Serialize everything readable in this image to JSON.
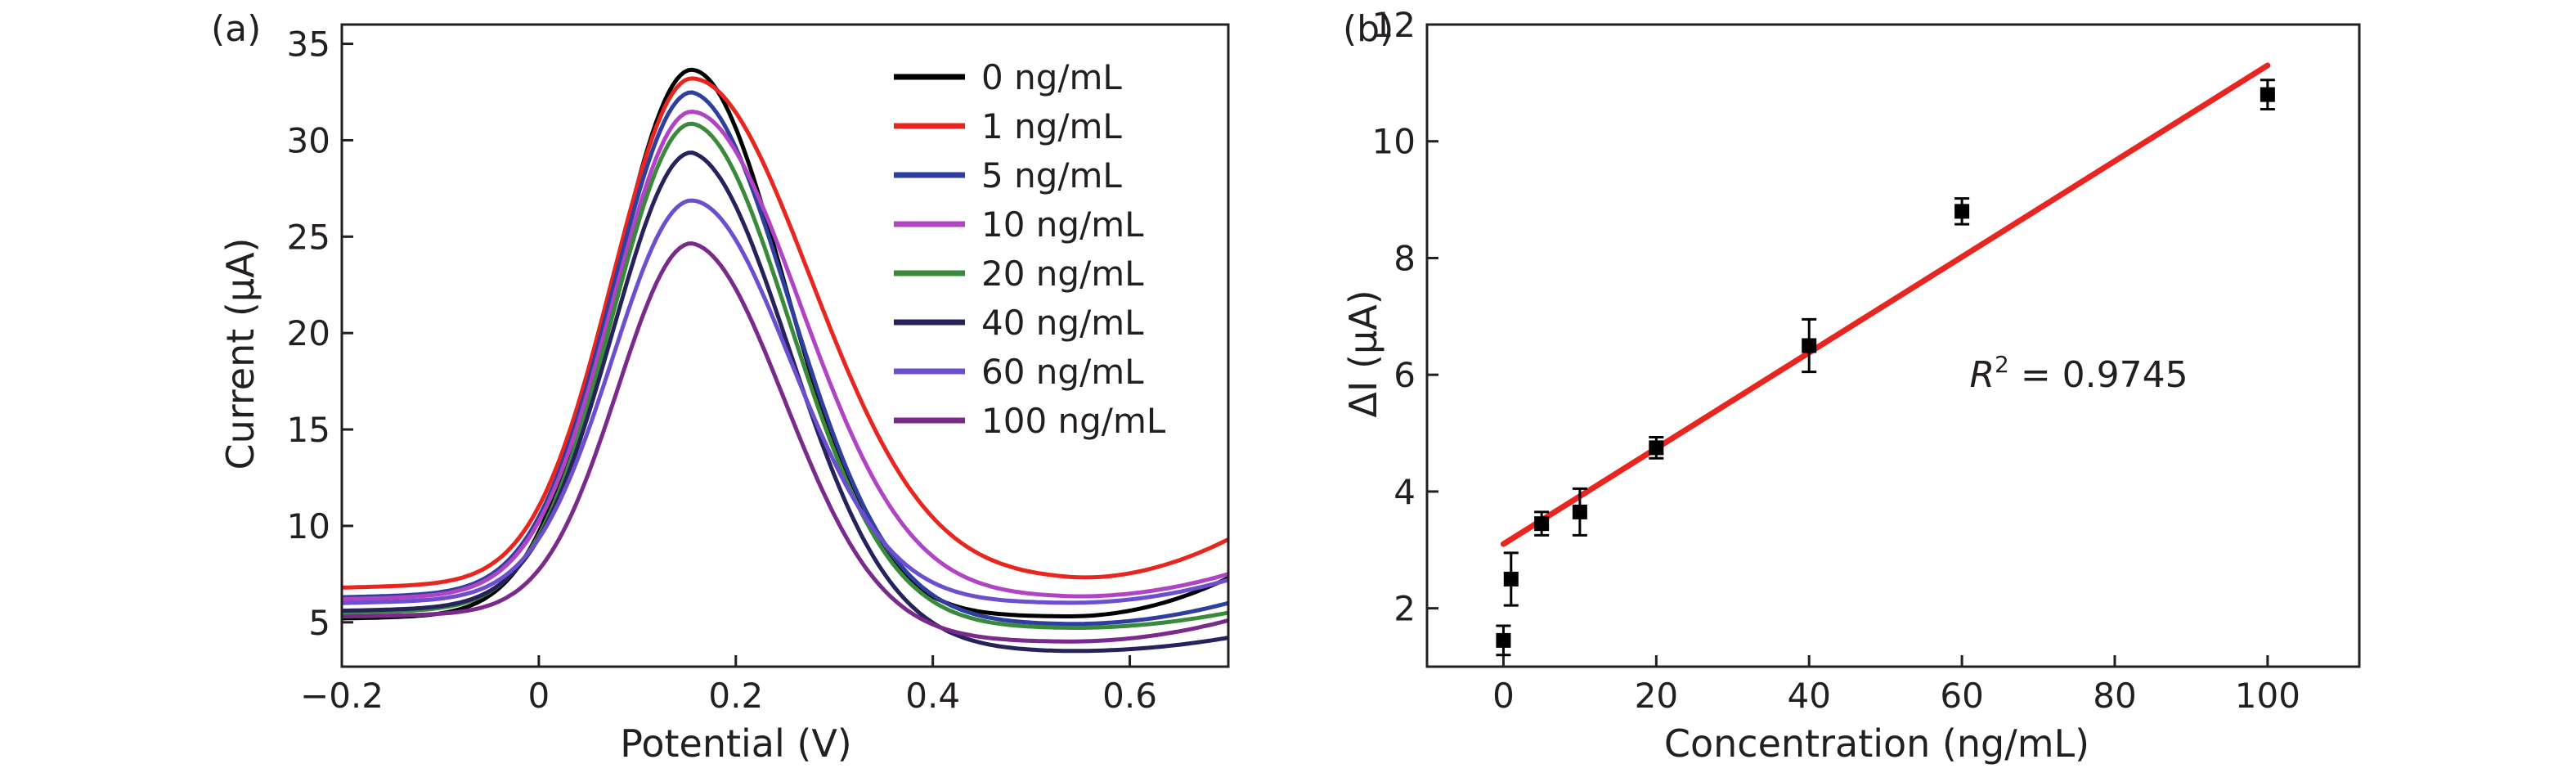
{
  "chart_data": [
    {
      "panel_label": "(a)",
      "type": "line",
      "xlabel": "Potential (V)",
      "ylabel": "Current (µA)",
      "xlim": [
        -0.2,
        0.7
      ],
      "ylim": [
        2.7,
        36
      ],
      "xticks": [
        {
          "value": -0.2,
          "label": "−0.2"
        },
        {
          "value": 0,
          "label": "0"
        },
        {
          "value": 0.2,
          "label": "0.2"
        },
        {
          "value": 0.4,
          "label": "0.4"
        },
        {
          "value": 0.6,
          "label": "0.6"
        }
      ],
      "yticks": [
        {
          "value": 5,
          "label": "5"
        },
        {
          "value": 10,
          "label": "10"
        },
        {
          "value": 15,
          "label": "15"
        },
        {
          "value": 20,
          "label": "20"
        },
        {
          "value": 25,
          "label": "25"
        },
        {
          "value": 30,
          "label": "30"
        },
        {
          "value": 35,
          "label": "35"
        }
      ],
      "legend_position": "top-right",
      "grid": false,
      "series": [
        {
          "name": "0 ng/mL",
          "color": "#000000",
          "baseline": 5.2,
          "peak": 33.5,
          "width_left": 0.08,
          "width_right": 0.095,
          "tail_min": 5.3,
          "tail_end": 7.3
        },
        {
          "name": "1 ng/mL",
          "color": "#e8251f",
          "baseline": 6.8,
          "peak": 33.0,
          "width_left": 0.08,
          "width_right": 0.12,
          "tail_min": 7.2,
          "tail_end": 9.3
        },
        {
          "name": "5 ng/mL",
          "color": "#2e3f9f",
          "baseline": 6.3,
          "peak": 32.3,
          "width_left": 0.08,
          "width_right": 0.1,
          "tail_min": 4.9,
          "tail_end": 6.0
        },
        {
          "name": "10 ng/mL",
          "color": "#b044c4",
          "baseline": 6.2,
          "peak": 31.3,
          "width_left": 0.08,
          "width_right": 0.11,
          "tail_min": 6.3,
          "tail_end": 7.5
        },
        {
          "name": "20 ng/mL",
          "color": "#3a8a3c",
          "baseline": 5.5,
          "peak": 30.7,
          "width_left": 0.08,
          "width_right": 0.1,
          "tail_min": 4.7,
          "tail_end": 5.5
        },
        {
          "name": "40 ng/mL",
          "color": "#26235c",
          "baseline": 5.6,
          "peak": 29.2,
          "width_left": 0.08,
          "width_right": 0.1,
          "tail_min": 3.5,
          "tail_end": 4.2
        },
        {
          "name": "60 ng/mL",
          "color": "#6c4fcf",
          "baseline": 6.0,
          "peak": 26.7,
          "width_left": 0.08,
          "width_right": 0.1,
          "tail_min": 6.0,
          "tail_end": 7.2
        },
        {
          "name": "100 ng/mL",
          "color": "#7a2a8a",
          "baseline": 5.3,
          "peak": 24.5,
          "width_left": 0.075,
          "width_right": 0.095,
          "tail_min": 4.0,
          "tail_end": 5.1
        }
      ],
      "peak_potential": 0.155
    },
    {
      "panel_label": "(b)",
      "type": "scatter",
      "xlabel": "Concentration (ng/mL)",
      "ylabel": "ΔI (µA)",
      "xlim": [
        -10,
        112
      ],
      "ylim": [
        1,
        12
      ],
      "xticks": [
        {
          "value": 0,
          "label": "0"
        },
        {
          "value": 20,
          "label": "20"
        },
        {
          "value": 40,
          "label": "40"
        },
        {
          "value": 60,
          "label": "60"
        },
        {
          "value": 80,
          "label": "80"
        },
        {
          "value": 100,
          "label": "100"
        }
      ],
      "yticks": [
        {
          "value": 2,
          "label": "2"
        },
        {
          "value": 4,
          "label": "4"
        },
        {
          "value": 6,
          "label": "6"
        },
        {
          "value": 8,
          "label": "8"
        },
        {
          "value": 10,
          "label": "10"
        },
        {
          "value": 12,
          "label": "12"
        }
      ],
      "points": [
        {
          "x": 0,
          "y": 1.45,
          "err": 0.25
        },
        {
          "x": 1,
          "y": 2.5,
          "err": 0.45
        },
        {
          "x": 5,
          "y": 3.45,
          "err": 0.2
        },
        {
          "x": 10,
          "y": 3.65,
          "err": 0.4
        },
        {
          "x": 20,
          "y": 4.75,
          "err": 0.18
        },
        {
          "x": 40,
          "y": 6.5,
          "err": 0.45
        },
        {
          "x": 60,
          "y": 8.8,
          "err": 0.22
        },
        {
          "x": 100,
          "y": 10.8,
          "err": 0.25
        }
      ],
      "fit": {
        "x0": 0,
        "y0": 3.1,
        "x1": 100,
        "y1": 11.3,
        "color": "#e8251f"
      },
      "annotation": {
        "r_symbol": "R",
        "sup": "2",
        "rest": " = 0.9745",
        "x": 61,
        "y": 6.0
      },
      "marker_color": "#000000",
      "grid": false
    }
  ]
}
